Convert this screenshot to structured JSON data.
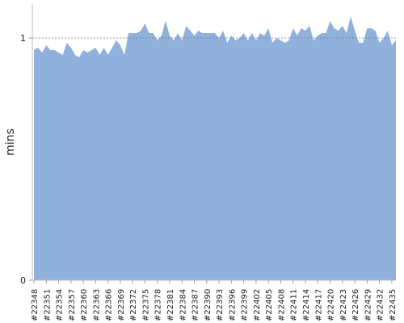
{
  "chart_data": {
    "type": "area",
    "y_label": "mins",
    "categories": [
      "#22348",
      null,
      null,
      "#22351",
      null,
      null,
      "#22354",
      null,
      null,
      "#22357",
      null,
      null,
      "#22360",
      null,
      null,
      "#22363",
      null,
      null,
      "#22366",
      null,
      null,
      "#22369",
      null,
      null,
      "#22372",
      null,
      null,
      "#22375",
      null,
      null,
      "#22378",
      null,
      null,
      "#22381",
      null,
      null,
      "#22384",
      null,
      null,
      "#22387",
      null,
      null,
      "#22390",
      null,
      null,
      "#22393",
      null,
      null,
      "#22396",
      null,
      null,
      "#22399",
      null,
      null,
      "#22402",
      null,
      null,
      "#22405",
      null,
      null,
      "#22408",
      null,
      null,
      "#22411",
      null,
      null,
      "#22414",
      null,
      null,
      "#22417",
      null,
      null,
      "#22420",
      null,
      null,
      "#22423",
      null,
      null,
      "#22426",
      null,
      null,
      "#22429",
      null,
      null,
      "#22432",
      null,
      null,
      "#22435",
      null
    ],
    "values": [
      0.95,
      0.96,
      0.94,
      0.97,
      0.95,
      0.95,
      0.94,
      0.93,
      0.98,
      0.96,
      0.93,
      0.92,
      0.95,
      0.94,
      0.95,
      0.96,
      0.93,
      0.96,
      0.93,
      0.96,
      0.99,
      0.97,
      0.93,
      1.02,
      1.02,
      1.02,
      1.03,
      1.06,
      1.02,
      1.02,
      0.99,
      1.01,
      1.07,
      1.01,
      0.99,
      1.02,
      0.99,
      1.05,
      1.03,
      1.01,
      1.03,
      1.02,
      1.02,
      1.02,
      1.02,
      1.0,
      1.03,
      0.98,
      1.01,
      0.99,
      1.0,
      1.02,
      0.99,
      1.02,
      0.99,
      1.02,
      1.01,
      1.04,
      0.98,
      1.0,
      0.99,
      0.98,
      0.99,
      1.04,
      1.01,
      1.04,
      1.03,
      1.05,
      0.99,
      1.01,
      1.02,
      1.02,
      1.07,
      1.04,
      1.03,
      1.05,
      1.02,
      1.09,
      1.03,
      0.98,
      0.98,
      1.04,
      1.04,
      1.03,
      0.98,
      1.0,
      1.03,
      0.97,
      0.99
    ],
    "color": "#8fb1dc",
    "ylim": [
      0,
      1.14
    ],
    "yticks": [
      0,
      1
    ],
    "grid": true
  }
}
